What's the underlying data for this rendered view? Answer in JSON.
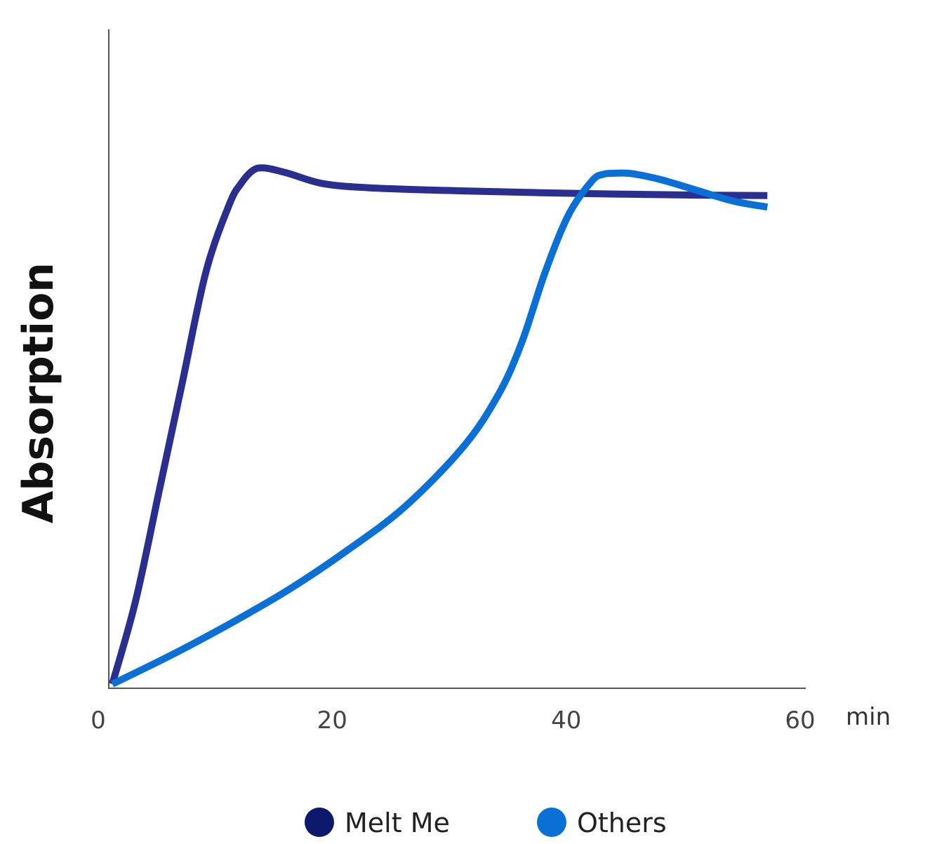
{
  "chart_data": {
    "type": "line",
    "title": "",
    "xlabel": "min",
    "ylabel": "Absorption",
    "xlim": [
      0,
      60
    ],
    "ylim": [
      0,
      100
    ],
    "x_ticks": [
      "0",
      "20",
      "40",
      "60"
    ],
    "grid": false,
    "legend_position": "bottom",
    "series": [
      {
        "name": "Melt Me",
        "color": "#2a2f8f",
        "legend_color": "#0d1a6b",
        "x": [
          0,
          2,
          4,
          6,
          8,
          10,
          11,
          12,
          13,
          15,
          18,
          22,
          30,
          40,
          50,
          56
        ],
        "y": [
          0,
          16,
          37,
          58,
          79,
          92,
          96,
          98.5,
          99,
          98,
          96,
          95.2,
          94.6,
          94.1,
          93.8,
          93.7
        ]
      },
      {
        "name": "Others",
        "color": "#0a70d6",
        "legend_color": "#0a70d6",
        "x": [
          0,
          5,
          10,
          15,
          20,
          25,
          30,
          33,
          35,
          37,
          39,
          41,
          42,
          43,
          44,
          45,
          47,
          50,
          53,
          56
        ],
        "y": [
          0,
          5.5,
          11.5,
          18,
          25.5,
          34,
          45.5,
          55.5,
          65.5,
          79,
          90,
          96.5,
          97.8,
          98,
          98,
          97.7,
          96.7,
          94.7,
          92.7,
          91.5
        ]
      }
    ]
  }
}
